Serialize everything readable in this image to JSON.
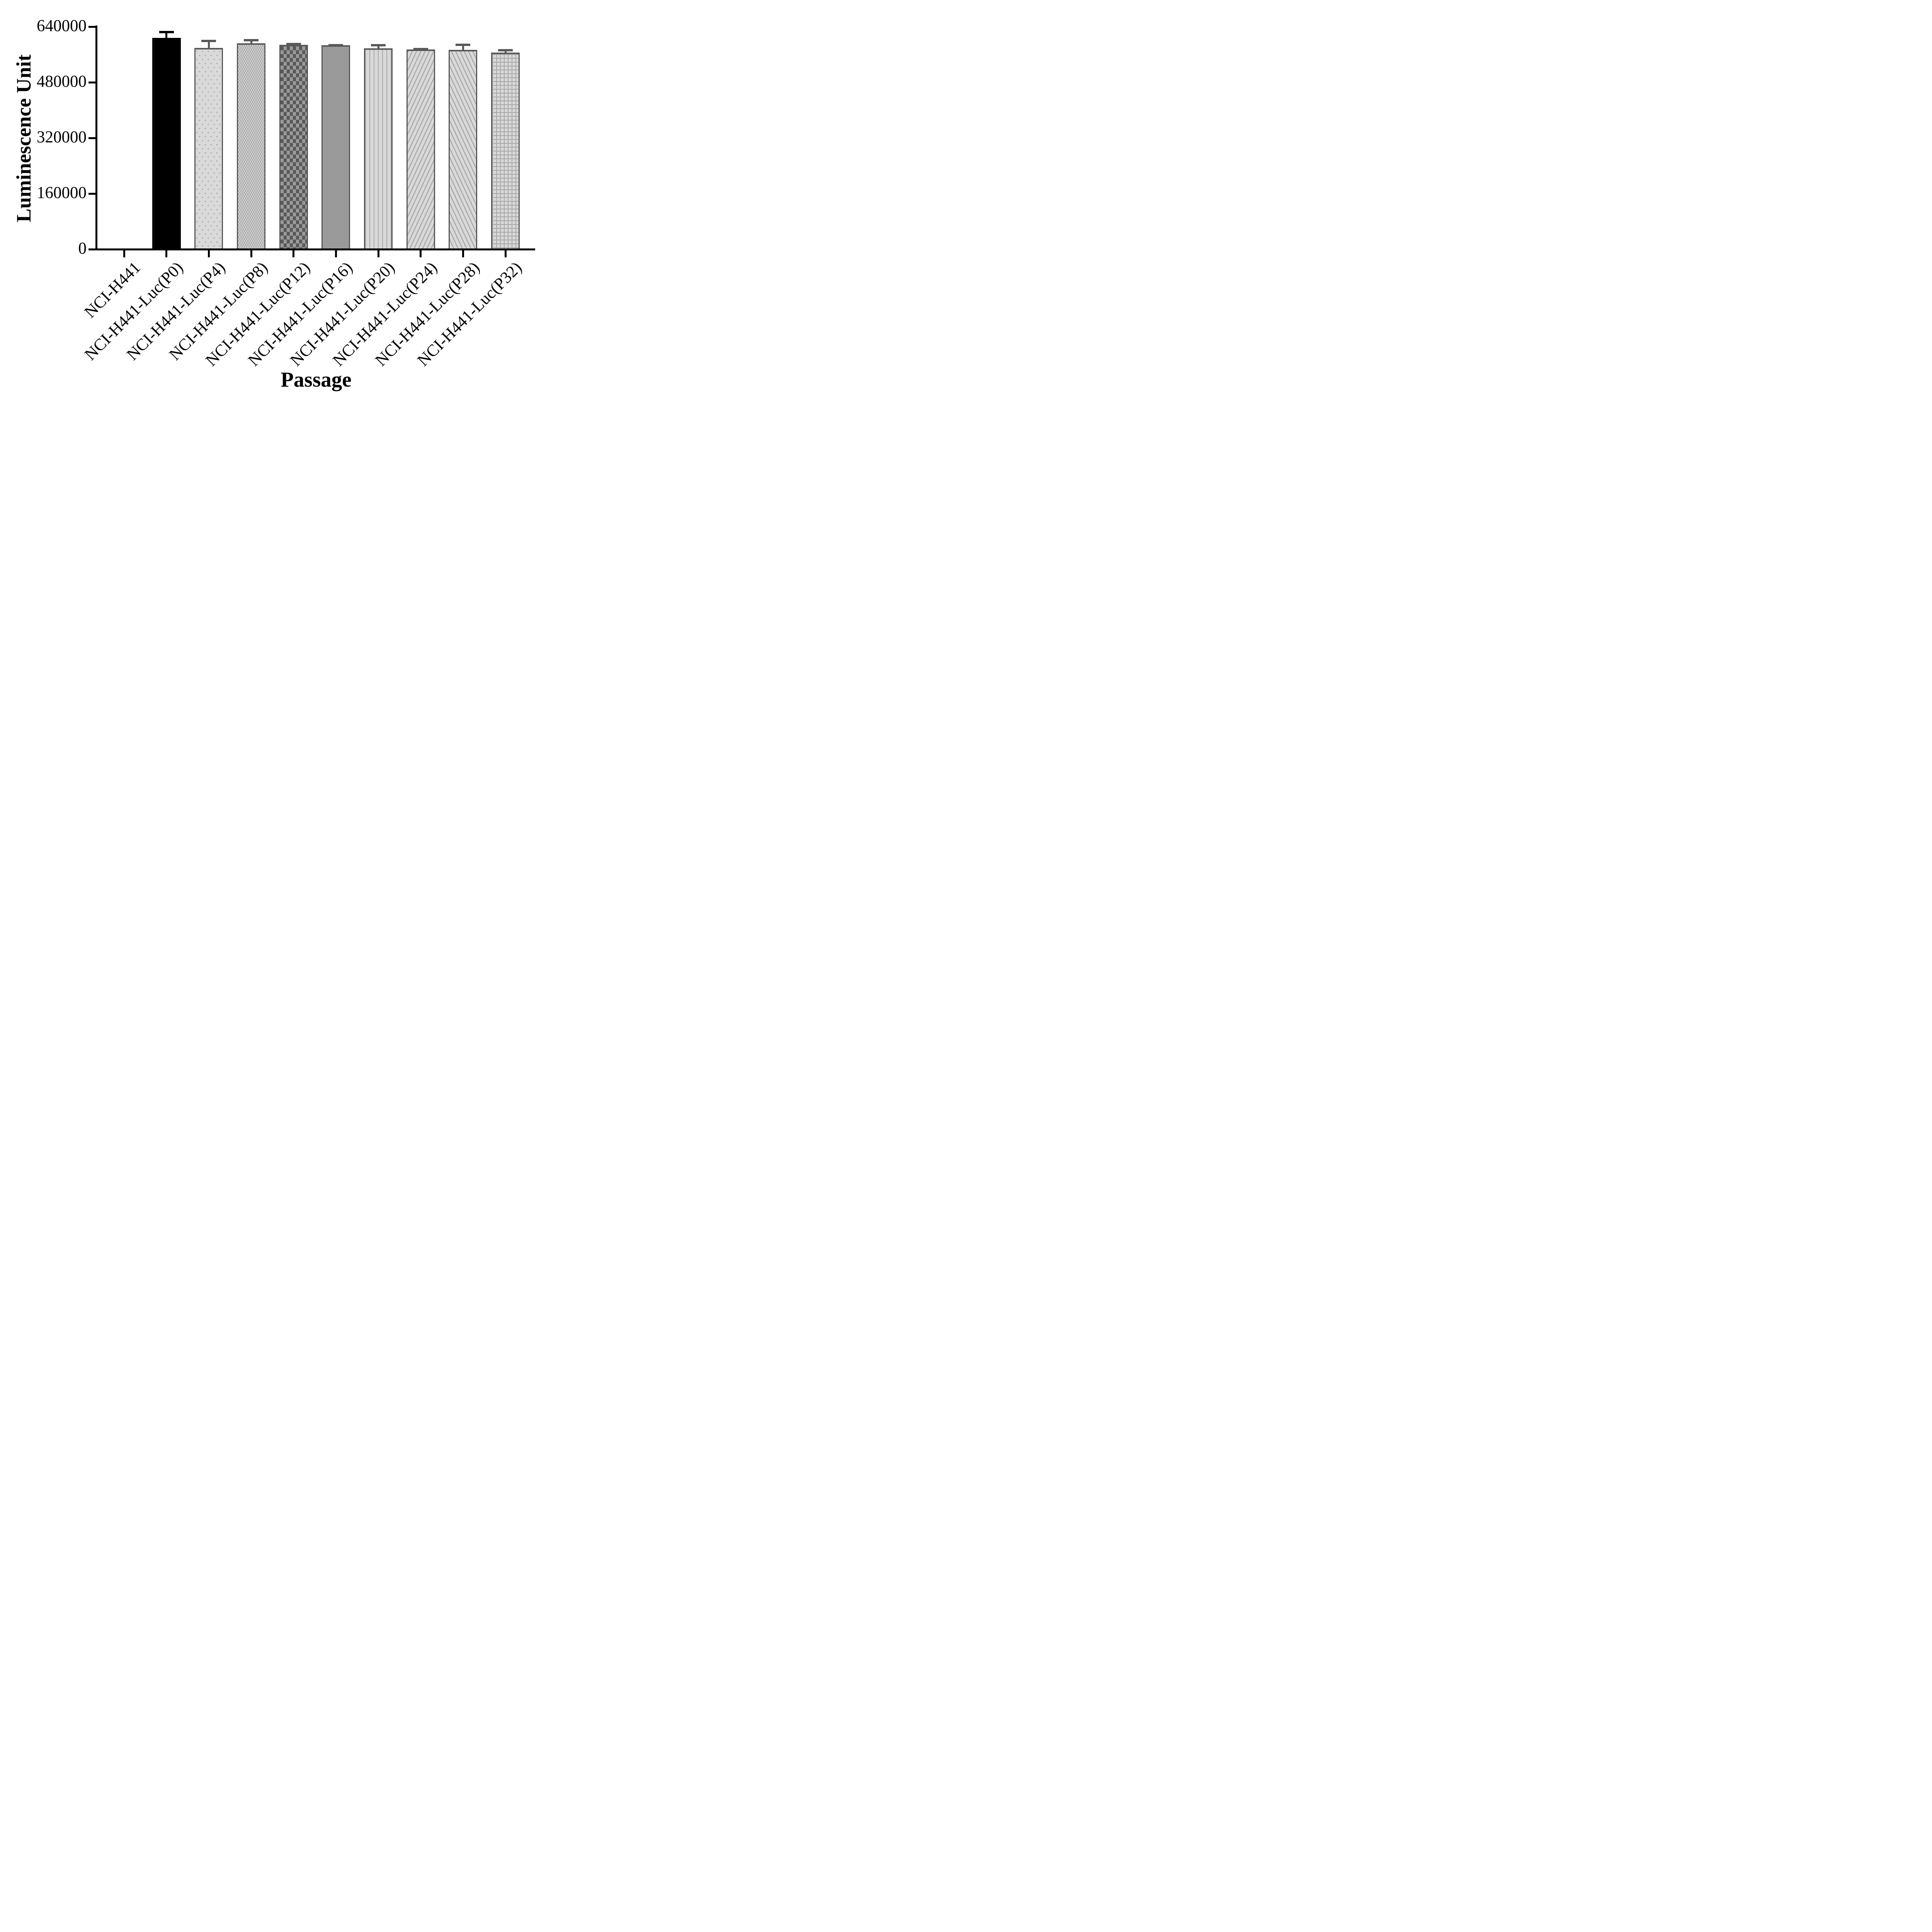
{
  "figure": {
    "y_axis_title": "Luminescence Unit",
    "x_axis_title": "Passage"
  },
  "chart_data": {
    "type": "bar",
    "title": "",
    "xlabel": "Passage",
    "ylabel": "Luminescence Unit",
    "ylim": [
      0,
      640000
    ],
    "ytick_interval": 160000,
    "yticks": [
      640000,
      480000,
      320000,
      160000,
      0
    ],
    "ytick_labels": [
      "640000",
      "480000",
      "320000",
      "160000",
      "0"
    ],
    "grid": false,
    "legend_position": "none",
    "categories": [
      "NCI-H441",
      "NCI-H441-Luc(P0)",
      "NCI-H441-Luc(P4)",
      "NCI-H441-Luc(P8)",
      "NCI-H441-Luc(P12)",
      "NCI-H441-Luc(P16)",
      "NCI-H441-Luc(P20)",
      "NCI-H441-Luc(P24)",
      "NCI-H441-Luc(P28)",
      "NCI-H441-Luc(P32)"
    ],
    "values": [
      0,
      608000,
      579000,
      592000,
      588000,
      587000,
      578000,
      575000,
      573000,
      566000
    ],
    "errors_plus": [
      0,
      20000,
      23000,
      13000,
      5000,
      3000,
      12000,
      4000,
      18000,
      10000
    ],
    "bar_styles": [
      {
        "pattern": "none",
        "fill": "none",
        "accent": "none",
        "border": "none",
        "error_color": "none"
      },
      {
        "pattern": "solid-black",
        "fill": "#000000",
        "accent": "#000000",
        "border": "#000000",
        "error_color": "#000000"
      },
      {
        "pattern": "dots",
        "fill": "#d9d9d9",
        "accent": "#a6a6a6",
        "border": "#595959",
        "error_color": "#595959"
      },
      {
        "pattern": "checker-fine",
        "fill": "#d4d4d4",
        "accent": "#a8a8a8",
        "border": "#595959",
        "error_color": "#595959"
      },
      {
        "pattern": "checker-coarse",
        "fill": "#595959",
        "accent": "#9a9a9a",
        "border": "#595959",
        "error_color": "#595959"
      },
      {
        "pattern": "solid-gray",
        "fill": "#9a9a9a",
        "accent": "#9a9a9a",
        "border": "#595959",
        "error_color": "#595959"
      },
      {
        "pattern": "vertical-stripes",
        "fill": "#d9d9d9",
        "accent": "#a6a6a6",
        "border": "#595959",
        "error_color": "#595959"
      },
      {
        "pattern": "diagonal-stripes-up",
        "fill": "#d9d9d9",
        "accent": "#a6a6a6",
        "border": "#595959",
        "error_color": "#595959"
      },
      {
        "pattern": "diagonal-stripes-down",
        "fill": "#d9d9d9",
        "accent": "#a6a6a6",
        "border": "#595959",
        "error_color": "#595959"
      },
      {
        "pattern": "grid",
        "fill": "#d9d9d9",
        "accent": "#a6a6a6",
        "border": "#595959",
        "error_color": "#595959"
      }
    ],
    "axis_color": "#000000",
    "text_color": "#000000"
  }
}
